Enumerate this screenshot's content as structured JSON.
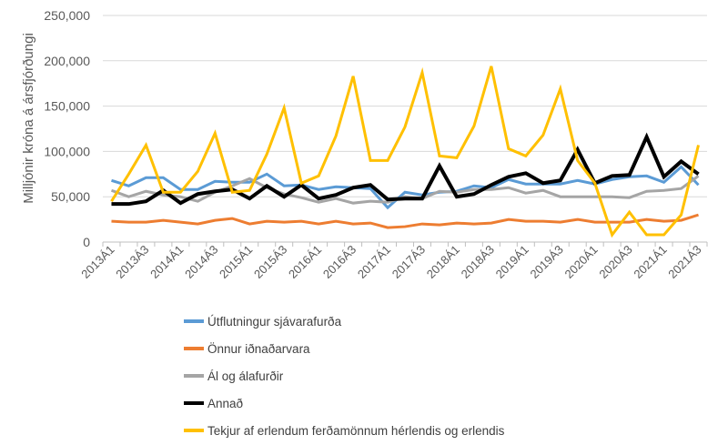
{
  "chart_data": {
    "type": "line",
    "ylabel": "Milljónir króna á ársfjórðungi",
    "xlabel": "",
    "ylim": [
      0,
      250000
    ],
    "yticks": [
      "0",
      "50,000",
      "100,000",
      "150,000",
      "200,000",
      "250,000"
    ],
    "ytick_values": [
      0,
      50000,
      100000,
      150000,
      200000,
      250000
    ],
    "grid": true,
    "legend": "bottom",
    "categories": [
      "2013Á1",
      "2013Á2",
      "2013Á3",
      "2013Á4",
      "2014Á1",
      "2014Á2",
      "2014Á3",
      "2014Á4",
      "2015Á1",
      "2015Á2",
      "2015Á3",
      "2015Á4",
      "2016Á1",
      "2016Á2",
      "2016Á3",
      "2016Á4",
      "2017Á1",
      "2017Á2",
      "2017Á3",
      "2017Á4",
      "2018Á1",
      "2018Á2",
      "2018Á3",
      "2018Á4",
      "2019Á1",
      "2019Á2",
      "2019Á3",
      "2019Á4",
      "2020Á1",
      "2020Á2",
      "2020Á3",
      "2020Á4",
      "2021Á1",
      "2021Á2",
      "2021Á3"
    ],
    "xtick_labels": [
      "2013Á1",
      "2013Á3",
      "2014Á1",
      "2014Á3",
      "2015Á1",
      "2015Á3",
      "2016Á1",
      "2016Á3",
      "2017Á1",
      "2017Á3",
      "2018Á1",
      "2018Á3",
      "2019Á1",
      "2019Á3",
      "2020Á1",
      "2020Á3",
      "2021Á1",
      "2021Á3"
    ],
    "series": [
      {
        "name": "Útflutningur sjávarafurða",
        "color": "#5B9BD5",
        "width": 3,
        "values": [
          68000,
          62000,
          71000,
          71000,
          58000,
          58000,
          67000,
          66000,
          66000,
          75000,
          62000,
          63000,
          58000,
          61000,
          60000,
          59000,
          38000,
          55000,
          52000,
          55000,
          56000,
          62000,
          60000,
          69000,
          64000,
          64000,
          64000,
          68000,
          64000,
          69000,
          72000,
          73000,
          66000,
          83000,
          63000
        ]
      },
      {
        "name": "Önnur iðnaðarvara",
        "color": "#ED7D31",
        "width": 3,
        "values": [
          23000,
          22000,
          22000,
          24000,
          22000,
          20000,
          24000,
          26000,
          20000,
          23000,
          22000,
          23000,
          20000,
          23000,
          20000,
          21000,
          16000,
          17000,
          20000,
          19000,
          21000,
          20000,
          21000,
          25000,
          23000,
          23000,
          22000,
          25000,
          22000,
          22000,
          22000,
          25000,
          23000,
          24000,
          30000
        ]
      },
      {
        "name": "Ál og álafurðir",
        "color": "#A5A5A5",
        "width": 3,
        "values": [
          57000,
          50000,
          56000,
          52000,
          50000,
          45000,
          55000,
          62000,
          70000,
          60000,
          53000,
          49000,
          44000,
          48000,
          43000,
          45000,
          44000,
          50000,
          48000,
          56000,
          55000,
          58000,
          58000,
          60000,
          54000,
          57000,
          50000,
          50000,
          50000,
          50000,
          49000,
          56000,
          57000,
          59000,
          73000
        ]
      },
      {
        "name": "Annað",
        "color": "#000000",
        "width": 4,
        "values": [
          42000,
          42000,
          45000,
          57000,
          43000,
          53000,
          56000,
          58000,
          48000,
          62000,
          50000,
          63000,
          48000,
          52000,
          60000,
          63000,
          47000,
          48000,
          48000,
          84000,
          50000,
          53000,
          63000,
          72000,
          76000,
          65000,
          68000,
          102000,
          65000,
          73000,
          74000,
          116000,
          72000,
          89000,
          75000
        ]
      },
      {
        "name": "Tekjur af erlendum ferðamönnum hérlendis og erlendis",
        "color": "#FFC000",
        "width": 3,
        "values": [
          45000,
          75000,
          107000,
          55000,
          55000,
          78000,
          120000,
          55000,
          57000,
          97000,
          148000,
          65000,
          73000,
          117000,
          183000,
          90000,
          90000,
          127000,
          187000,
          95000,
          93000,
          128000,
          194000,
          103000,
          95000,
          118000,
          169000,
          90000,
          65000,
          8000,
          33000,
          8000,
          8000,
          30000,
          107000
        ]
      }
    ]
  }
}
